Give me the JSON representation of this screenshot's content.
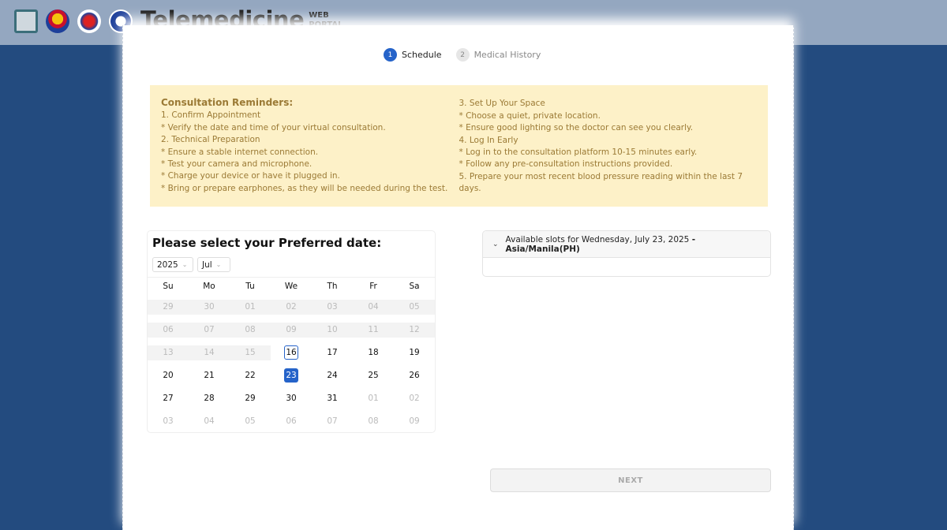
{
  "header": {
    "title": "Telemedicine",
    "subtitle_line1": "WEB",
    "subtitle_line2": "PORTAL"
  },
  "stepper": [
    {
      "num": "1",
      "label": "Schedule"
    },
    {
      "num": "2",
      "label": "Medical History"
    }
  ],
  "reminders": {
    "title": "Consultation Reminders:",
    "left": [
      "1. Confirm Appointment",
      "* Verify the date and time of your virtual consultation.",
      "2. Technical Preparation",
      "* Ensure a stable internet connection.",
      "* Test your camera and microphone.",
      "* Charge your device or have it plugged in.",
      "* Bring or prepare earphones, as they will be needed during the test."
    ],
    "right": [
      "3. Set Up Your Space",
      "* Choose a quiet, private location.",
      "* Ensure good lighting so the doctor can see you clearly.",
      "4. Log In Early",
      "* Log in to the consultation platform 10-15 minutes early.",
      "* Follow any pre-consultation instructions provided.",
      "5. Prepare your most recent blood pressure reading within the last 7 days."
    ]
  },
  "calendar": {
    "title": "Please select your Preferred date:",
    "year": "2025",
    "month": "Jul",
    "weekdays": [
      "Su",
      "Mo",
      "Tu",
      "We",
      "Th",
      "Fr",
      "Sa"
    ],
    "weeks": [
      [
        "29",
        "30",
        "01",
        "02",
        "03",
        "04",
        "05"
      ],
      [
        "06",
        "07",
        "08",
        "09",
        "10",
        "11",
        "12"
      ],
      [
        "13",
        "14",
        "15",
        "16",
        "17",
        "18",
        "19"
      ],
      [
        "20",
        "21",
        "22",
        "23",
        "24",
        "25",
        "26"
      ],
      [
        "27",
        "28",
        "29",
        "30",
        "31",
        "01",
        "02"
      ],
      [
        "03",
        "04",
        "05",
        "06",
        "07",
        "08",
        "09"
      ]
    ],
    "today": "16",
    "selected": "23"
  },
  "slots": {
    "label": "Available slots for Wednesday, July 23, 2025",
    "timezone": "- Asia/Manila(PH)"
  },
  "next_label": "NEXT",
  "colors": {
    "primary": "#2563c9",
    "background": "#234b7f",
    "reminder_bg": "#fdf1c8"
  }
}
